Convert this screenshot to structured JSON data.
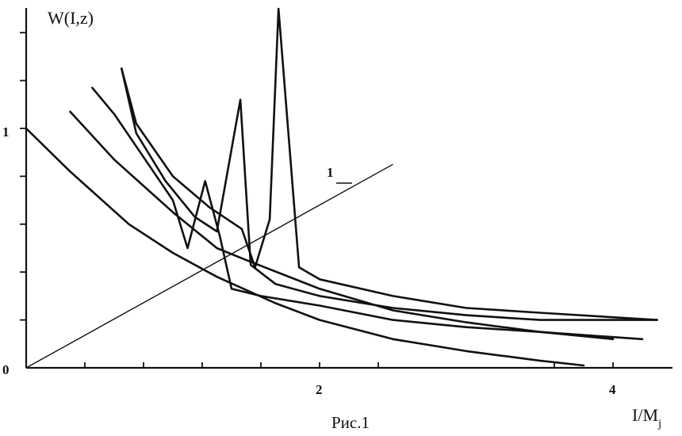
{
  "chart_data": {
    "type": "line",
    "ylabel": "W(I,z)",
    "xlabel_main": "I/M",
    "xlabel_sub": "j",
    "caption": "Рис.1",
    "xlim": [
      0,
      4.5
    ],
    "ylim": [
      0,
      1.5
    ],
    "x_tick_labels": [
      {
        "x": 2,
        "label": "2"
      },
      {
        "x": 4,
        "label": "4"
      }
    ],
    "y_tick_labels": [
      {
        "y": 0,
        "label": "0"
      },
      {
        "y": 1,
        "label": "1"
      }
    ],
    "x_minor_ticks": [
      0.4,
      0.8,
      1.2,
      1.6,
      2.0,
      2.4,
      3.6,
      4.0
    ],
    "y_minor_ticks": [
      0.2,
      0.4,
      0.6,
      0.8,
      1.0,
      1.2,
      1.4
    ],
    "line_label": "1",
    "series": [
      {
        "values": [
          [
            0,
            1.0
          ],
          [
            0.3,
            0.82
          ],
          [
            0.7,
            0.6
          ],
          [
            1.0,
            0.48
          ],
          [
            1.3,
            0.38
          ],
          [
            1.7,
            0.27
          ],
          [
            2.0,
            0.2
          ],
          [
            2.5,
            0.12
          ],
          [
            3.0,
            0.07
          ],
          [
            3.5,
            0.03
          ],
          [
            3.8,
            0.01
          ]
        ]
      },
      {
        "values": [
          [
            0.3,
            1.07
          ],
          [
            0.6,
            0.87
          ],
          [
            1.0,
            0.65
          ],
          [
            1.3,
            0.5
          ],
          [
            1.5,
            0.45
          ],
          [
            2.0,
            0.33
          ],
          [
            2.5,
            0.24
          ],
          [
            3.0,
            0.19
          ],
          [
            3.5,
            0.15
          ],
          [
            4.0,
            0.12
          ]
        ]
      },
      {
        "values": [
          [
            0.45,
            1.17
          ],
          [
            0.6,
            1.06
          ],
          [
            0.8,
            0.88
          ],
          [
            1.0,
            0.7
          ],
          [
            1.1,
            0.5
          ],
          [
            1.22,
            0.78
          ],
          [
            1.32,
            0.55
          ],
          [
            1.4,
            0.33
          ],
          [
            1.6,
            0.3
          ],
          [
            2.0,
            0.26
          ],
          [
            2.5,
            0.2
          ],
          [
            3.0,
            0.17
          ],
          [
            3.5,
            0.15
          ],
          [
            4.2,
            0.12
          ]
        ]
      },
      {
        "values": [
          [
            0.65,
            1.25
          ],
          [
            0.75,
            0.98
          ],
          [
            0.95,
            0.78
          ],
          [
            1.15,
            0.63
          ],
          [
            1.3,
            0.57
          ],
          [
            1.46,
            1.12
          ],
          [
            1.53,
            0.43
          ],
          [
            1.7,
            0.35
          ],
          [
            2.0,
            0.3
          ],
          [
            2.5,
            0.25
          ],
          [
            3.0,
            0.22
          ],
          [
            3.5,
            0.2
          ],
          [
            4.3,
            0.2
          ]
        ]
      },
      {
        "values": [
          [
            0.65,
            1.25
          ],
          [
            0.75,
            1.02
          ],
          [
            1.0,
            0.8
          ],
          [
            1.25,
            0.67
          ],
          [
            1.47,
            0.58
          ],
          [
            1.56,
            0.42
          ],
          [
            1.66,
            0.62
          ],
          [
            1.72,
            1.5
          ],
          [
            1.86,
            0.42
          ],
          [
            2.0,
            0.37
          ],
          [
            2.5,
            0.3
          ],
          [
            3.0,
            0.25
          ],
          [
            3.5,
            0.23
          ],
          [
            4.3,
            0.2
          ]
        ]
      }
    ],
    "straight_line": {
      "values": [
        [
          0,
          0
        ],
        [
          2.5,
          0.85
        ]
      ]
    }
  }
}
